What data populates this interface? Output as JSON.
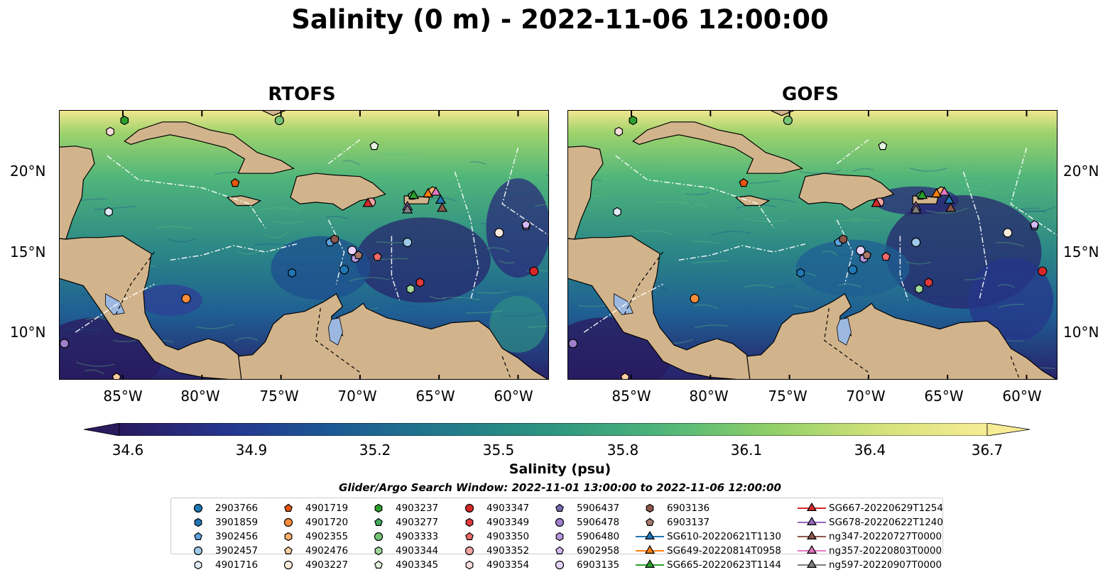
{
  "title": "Salinity (0 m) - 2022-11-06 12:00:00",
  "panels": [
    {
      "title": "RTOFS"
    },
    {
      "title": "GOFS"
    }
  ],
  "lat_ticks": [
    "20°N",
    "15°N",
    "10°N"
  ],
  "lon_ticks": [
    "85°W",
    "80°W",
    "75°W",
    "70°W",
    "65°W",
    "60°W"
  ],
  "colorbar": {
    "label": "Salinity (psu)",
    "ticks": [
      "34.6",
      "34.9",
      "35.2",
      "35.5",
      "35.8",
      "36.1",
      "36.4",
      "36.7"
    ],
    "range": [
      34.6,
      36.7
    ],
    "colormap": [
      "#2a1a5e",
      "#25358f",
      "#1c5a94",
      "#227a8a",
      "#2d9680",
      "#4fb57a",
      "#8fcf68",
      "#d4e27a",
      "#f7ec95"
    ]
  },
  "search_window": "Glider/Argo Search Window: 2022-11-01 13:00:00 to 2022-11-06 12:00:00",
  "legend": [
    {
      "label": "2903766",
      "marker": "circle",
      "color": "#1f77b4"
    },
    {
      "label": "3901859",
      "marker": "hexagon",
      "color": "#1f77b4"
    },
    {
      "label": "3902456",
      "marker": "pentagon",
      "color": "#5fa2dd"
    },
    {
      "label": "3902457",
      "marker": "circle",
      "color": "#9ecae9"
    },
    {
      "label": "4901716",
      "marker": "hexagon",
      "color": "#deebf7"
    },
    {
      "label": "4901719",
      "marker": "pentagon",
      "color": "#e6550d"
    },
    {
      "label": "4901720",
      "marker": "circle",
      "color": "#fd8d3c"
    },
    {
      "label": "4902355",
      "marker": "hexagon",
      "color": "#fdae6b"
    },
    {
      "label": "4902476",
      "marker": "pentagon",
      "color": "#fdd0a2"
    },
    {
      "label": "4903227",
      "marker": "circle",
      "color": "#feedde"
    },
    {
      "label": "4903237",
      "marker": "hexagon",
      "color": "#2ca02c"
    },
    {
      "label": "4903277",
      "marker": "pentagon",
      "color": "#41ab5d"
    },
    {
      "label": "4903333",
      "marker": "circle",
      "color": "#74c476"
    },
    {
      "label": "4903344",
      "marker": "hexagon",
      "color": "#a1d99b"
    },
    {
      "label": "4903345",
      "marker": "pentagon",
      "color": "#e5f5e0"
    },
    {
      "label": "4903347",
      "marker": "circle",
      "color": "#d62728"
    },
    {
      "label": "4903349",
      "marker": "hexagon",
      "color": "#e0393e"
    },
    {
      "label": "4903350",
      "marker": "pentagon",
      "color": "#f06a6a"
    },
    {
      "label": "4903352",
      "marker": "circle",
      "color": "#f4a3a3"
    },
    {
      "label": "4903354",
      "marker": "hexagon",
      "color": "#fcdede"
    },
    {
      "label": "5906437",
      "marker": "pentagon",
      "color": "#756bb1"
    },
    {
      "label": "5906478",
      "marker": "circle",
      "color": "#9e7fc9"
    },
    {
      "label": "5906480",
      "marker": "hexagon",
      "color": "#b497e0"
    },
    {
      "label": "6902958",
      "marker": "pentagon",
      "color": "#d4b9f5"
    },
    {
      "label": "6903135",
      "marker": "circle",
      "color": "#e8d3fb"
    },
    {
      "label": "6903136",
      "marker": "hexagon",
      "color": "#8c564b"
    },
    {
      "label": "6903137",
      "marker": "pentagon",
      "color": "#a9776a"
    },
    {
      "label": "SG610-20220621T1130",
      "marker": "triangle",
      "color": "#1f77b4"
    },
    {
      "label": "SG649-20220814T0958",
      "marker": "triangle",
      "color": "#ff7f0e"
    },
    {
      "label": "SG665-20220623T1144",
      "marker": "triangle",
      "color": "#2ca02c"
    },
    {
      "label": "SG667-20220629T1254",
      "marker": "triangle",
      "color": "#d62728"
    },
    {
      "label": "SG678-20220622T1240",
      "marker": "triangle",
      "color": "#9467bd"
    },
    {
      "label": "ng347-20220727T0000",
      "marker": "triangle",
      "color": "#8c564b"
    },
    {
      "label": "ng357-20220803T0000",
      "marker": "triangle",
      "color": "#e377c2"
    },
    {
      "label": "ng597-20220907T0000",
      "marker": "triangle",
      "color": "#7f7f7f"
    }
  ],
  "markers": [
    {
      "id": "2903766",
      "lon": -71.0,
      "lat": 13.9
    },
    {
      "id": "3901859",
      "lon": -74.3,
      "lat": 13.7
    },
    {
      "id": "3902456",
      "lon": -71.9,
      "lat": 15.6
    },
    {
      "id": "3902457",
      "lon": -67.0,
      "lat": 15.6
    },
    {
      "id": "4901716",
      "lon": -85.9,
      "lat": 17.5
    },
    {
      "id": "4901719",
      "lon": -77.9,
      "lat": 19.3
    },
    {
      "id": "4901720",
      "lon": -81.0,
      "lat": 12.1
    },
    {
      "id": "4902355",
      "lon": -65.4,
      "lat": 18.8
    },
    {
      "id": "4902476",
      "lon": -85.4,
      "lat": 7.2
    },
    {
      "id": "4903227",
      "lon": -61.2,
      "lat": 16.2
    },
    {
      "id": "4903237",
      "lon": -84.9,
      "lat": 23.2
    },
    {
      "id": "4903277",
      "lon": -66.7,
      "lat": 18.5
    },
    {
      "id": "4903333",
      "lon": -75.1,
      "lat": 23.2
    },
    {
      "id": "4903344",
      "lon": -66.8,
      "lat": 12.7
    },
    {
      "id": "4903345",
      "lon": -69.1,
      "lat": 21.6
    },
    {
      "id": "4903347",
      "lon": -59.0,
      "lat": 13.8
    },
    {
      "id": "4903349",
      "lon": -66.2,
      "lat": 13.1
    },
    {
      "id": "4903350",
      "lon": -68.9,
      "lat": 14.7
    },
    {
      "id": "4903352",
      "lon": -69.3,
      "lat": 18.1
    },
    {
      "id": "4903354",
      "lon": -85.8,
      "lat": 22.5
    },
    {
      "id": "5906437",
      "lon": -59.5,
      "lat": 16.6
    },
    {
      "id": "5906478",
      "lon": -88.7,
      "lat": 9.3
    },
    {
      "id": "5906480",
      "lon": -70.3,
      "lat": 14.6
    },
    {
      "id": "6902958",
      "lon": -59.5,
      "lat": 16.7
    },
    {
      "id": "6903135",
      "lon": -70.5,
      "lat": 15.1
    },
    {
      "id": "6903136",
      "lon": -71.6,
      "lat": 15.8
    },
    {
      "id": "6903137",
      "lon": -70.1,
      "lat": 14.8
    },
    {
      "id": "SG610-20220621T1130",
      "lon": -64.9,
      "lat": 18.2
    },
    {
      "id": "SG649-20220814T0958",
      "lon": -65.7,
      "lat": 18.6
    },
    {
      "id": "SG665-20220623T1144",
      "lon": -66.6,
      "lat": 18.5
    },
    {
      "id": "SG667-20220629T1254",
      "lon": -69.5,
      "lat": 18.0
    },
    {
      "id": "SG678-20220622T1240",
      "lon": -67.0,
      "lat": 17.8
    },
    {
      "id": "ng347-20220727T0000",
      "lon": -64.8,
      "lat": 17.7
    },
    {
      "id": "ng357-20220803T0000",
      "lon": -65.2,
      "lat": 18.7
    },
    {
      "id": "ng597-20220907T0000",
      "lon": -67.0,
      "lat": 17.6
    }
  ]
}
